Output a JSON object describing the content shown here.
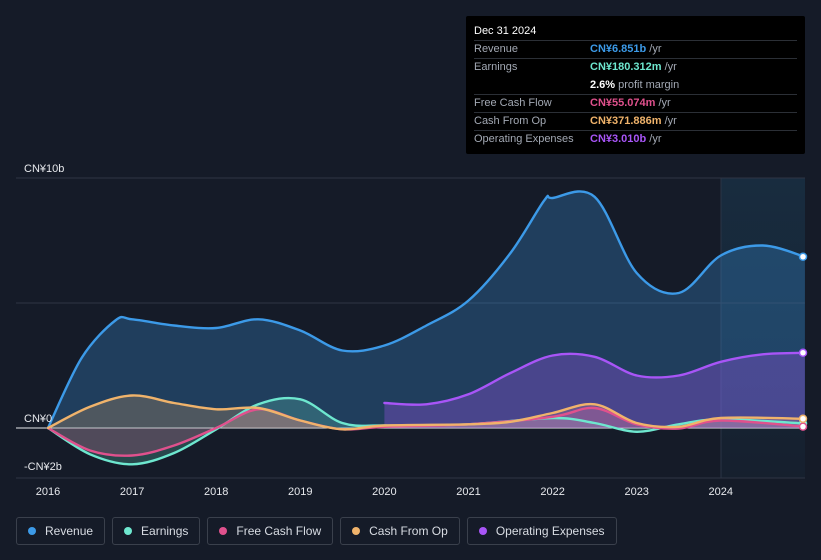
{
  "tooltip": {
    "date": "Dec 31 2024",
    "rows": [
      {
        "label": "Revenue",
        "value": "CN¥6.851b",
        "unit": "/yr",
        "color": "#3c9ae8"
      },
      {
        "label": "Earnings",
        "value": "CN¥180.312m",
        "unit": "/yr",
        "color": "#6ee7cf"
      },
      {
        "label": "",
        "value": "2.6%",
        "unit": "profit margin",
        "color": "#ffffff"
      },
      {
        "label": "Free Cash Flow",
        "value": "CN¥55.074m",
        "unit": "/yr",
        "color": "#e0518d"
      },
      {
        "label": "Cash From Op",
        "value": "CN¥371.886m",
        "unit": "/yr",
        "color": "#f0b36b"
      },
      {
        "label": "Operating Expenses",
        "value": "CN¥3.010b",
        "unit": "/yr",
        "color": "#a855f7"
      }
    ]
  },
  "legend": [
    {
      "label": "Revenue",
      "color": "#3c9ae8"
    },
    {
      "label": "Earnings",
      "color": "#6ee7cf"
    },
    {
      "label": "Free Cash Flow",
      "color": "#e0518d"
    },
    {
      "label": "Cash From Op",
      "color": "#f0b36b"
    },
    {
      "label": "Operating Expenses",
      "color": "#a855f7"
    }
  ],
  "chart_data": {
    "type": "area",
    "title": "",
    "y_tick_labels": [
      "CN¥10b",
      "CN¥0",
      "-CN¥2b"
    ],
    "ylim": [
      -2,
      10
    ],
    "x_tick_labels": [
      "2016",
      "2017",
      "2018",
      "2019",
      "2020",
      "2021",
      "2022",
      "2023",
      "2024"
    ],
    "xlim": [
      2016,
      2025
    ],
    "units": "CN¥ billions",
    "series": [
      {
        "name": "Revenue",
        "color": "#3c9ae8",
        "x": [
          2016.0,
          2016.4,
          2016.8,
          2017.0,
          2017.5,
          2018.0,
          2018.5,
          2019.0,
          2019.5,
          2020.0,
          2020.5,
          2021.0,
          2021.5,
          2021.9,
          2022.0,
          2022.5,
          2023.0,
          2023.5,
          2024.0,
          2024.5,
          2025.0
        ],
        "y": [
          0.0,
          2.8,
          4.3,
          4.35,
          4.1,
          4.0,
          4.35,
          3.9,
          3.1,
          3.3,
          4.1,
          5.1,
          7.0,
          9.1,
          9.2,
          9.25,
          6.2,
          5.4,
          6.9,
          7.3,
          6.85
        ]
      },
      {
        "name": "Earnings",
        "color": "#6ee7cf",
        "x": [
          2016.0,
          2016.5,
          2017.0,
          2017.5,
          2018.0,
          2018.5,
          2019.0,
          2019.5,
          2020.0,
          2021.0,
          2022.0,
          2022.5,
          2023.0,
          2023.5,
          2024.0,
          2025.0
        ],
        "y": [
          0.0,
          -1.05,
          -1.45,
          -1.0,
          -0.05,
          0.95,
          1.15,
          0.2,
          0.1,
          0.15,
          0.4,
          0.2,
          -0.15,
          0.15,
          0.35,
          0.18
        ]
      },
      {
        "name": "Free Cash Flow",
        "color": "#e0518d",
        "x": [
          2016.0,
          2016.5,
          2017.0,
          2017.5,
          2018.0,
          2018.5,
          2019.0,
          2019.5,
          2020.0,
          2021.0,
          2022.0,
          2022.5,
          2023.0,
          2023.5,
          2024.0,
          2025.0
        ],
        "y": [
          0.0,
          -0.9,
          -1.1,
          -0.7,
          0.0,
          0.75,
          0.3,
          -0.05,
          0.05,
          0.15,
          0.45,
          0.8,
          0.15,
          -0.02,
          0.3,
          0.055
        ]
      },
      {
        "name": "Cash From Op",
        "color": "#f0b36b",
        "x": [
          2016.0,
          2016.5,
          2017.0,
          2017.5,
          2018.0,
          2018.5,
          2019.0,
          2019.5,
          2020.0,
          2021.0,
          2021.5,
          2022.0,
          2022.5,
          2023.0,
          2023.5,
          2024.0,
          2025.0
        ],
        "y": [
          0.0,
          0.85,
          1.3,
          1.0,
          0.75,
          0.8,
          0.3,
          -0.05,
          0.1,
          0.15,
          0.25,
          0.6,
          0.95,
          0.2,
          0.05,
          0.4,
          0.37
        ]
      },
      {
        "name": "Operating Expenses",
        "color": "#a855f7",
        "x": [
          2020.0,
          2020.5,
          2021.0,
          2021.5,
          2022.0,
          2022.5,
          2023.0,
          2023.5,
          2024.0,
          2024.5,
          2025.0
        ],
        "y": [
          1.0,
          0.95,
          1.35,
          2.2,
          2.9,
          2.85,
          2.1,
          2.1,
          2.65,
          2.95,
          3.01
        ]
      }
    ]
  }
}
